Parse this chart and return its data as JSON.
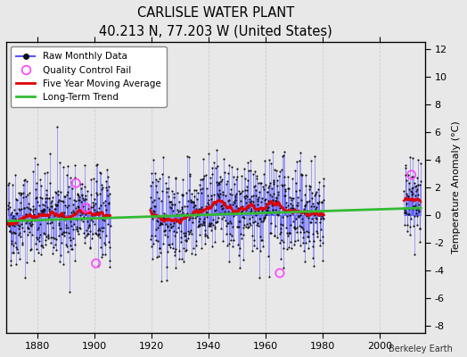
{
  "title": "CARLISLE WATER PLANT",
  "subtitle": "40.213 N, 77.203 W (United States)",
  "ylabel": "Temperature Anomaly (°C)",
  "credit": "Berkeley Earth",
  "xlim": [
    1869,
    2016
  ],
  "ylim": [
    -8.5,
    12.5
  ],
  "yticks": [
    -8,
    -6,
    -4,
    -2,
    0,
    2,
    4,
    6,
    8,
    10,
    12
  ],
  "xticks": [
    1880,
    1900,
    1920,
    1940,
    1960,
    1980,
    2000
  ],
  "fig_bg": "#e8e8e8",
  "plot_bg": "#e8e8e8",
  "raw_line_color": "#5555ff",
  "raw_dot_color": "#111111",
  "qc_fail_color": "#ff44ff",
  "moving_avg_color": "#dd0000",
  "trend_color": "#33bb33",
  "grid_color": "#cccccc",
  "gap1_start": 1905.5,
  "gap1_end": 1919.5,
  "gap2_start": 1980.5,
  "gap2_end": 2008.5,
  "data_start": 1869.5,
  "data_end": 2014.5,
  "seed": 42,
  "noise_std": 1.7,
  "legend_items": [
    "Raw Monthly Data",
    "Quality Control Fail",
    "Five Year Moving Average",
    "Long-Term Trend"
  ]
}
